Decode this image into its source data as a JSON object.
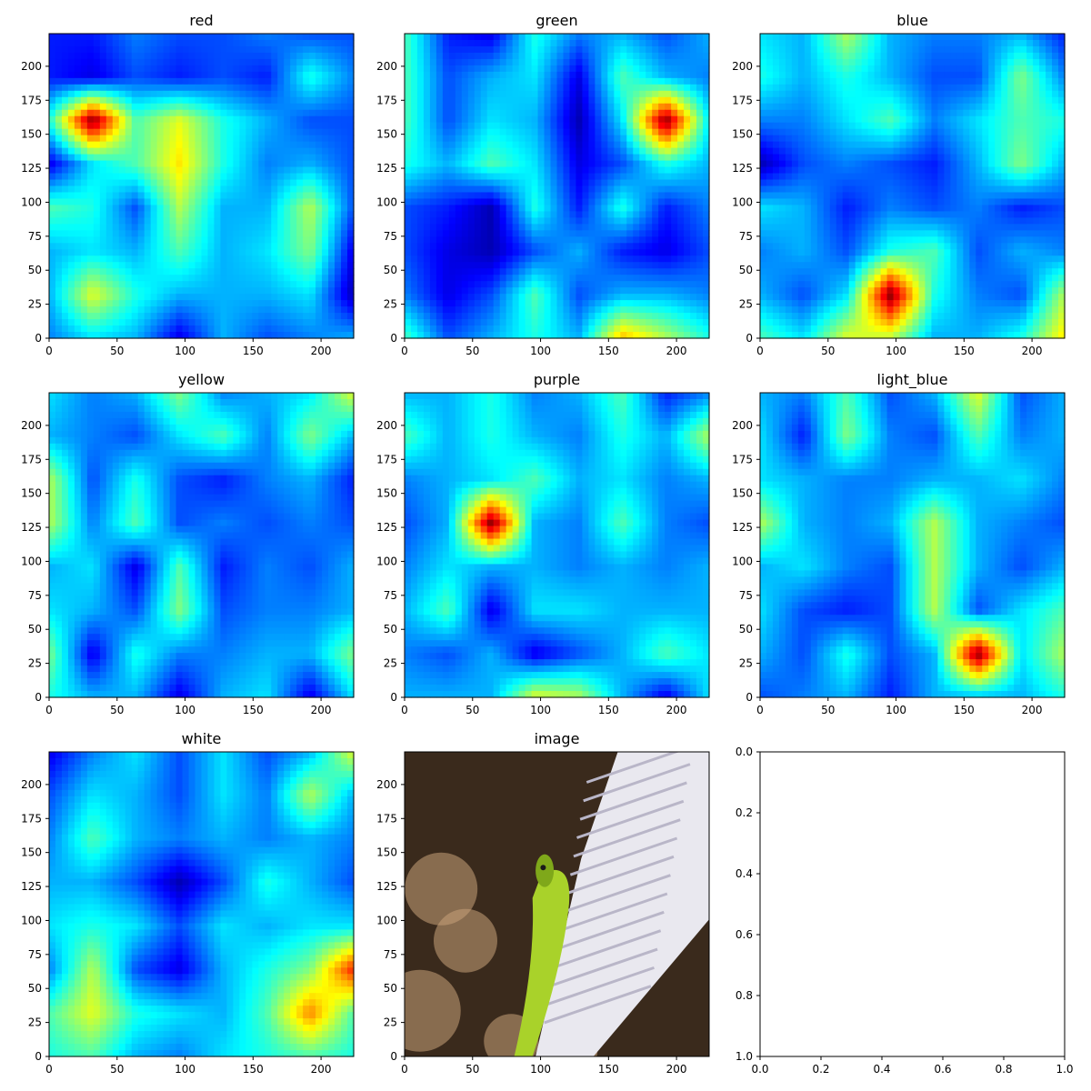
{
  "chart_data": [
    {
      "type": "heatmap",
      "title": "red",
      "colormap": "jet",
      "x_ticks": [
        "0",
        "50",
        "100",
        "150",
        "200"
      ],
      "y_ticks": [
        "0",
        "25",
        "50",
        "75",
        "100",
        "125",
        "150",
        "175",
        "200"
      ],
      "xlim": [
        0,
        224
      ],
      "ylim": [
        224,
        0
      ],
      "grid_size": 8,
      "values": [
        [
          0.15,
          0.15,
          0.25,
          0.2,
          0.2,
          0.25,
          0.2,
          0.2
        ],
        [
          0.15,
          0.1,
          0.2,
          0.15,
          0.2,
          0.15,
          0.4,
          0.25
        ],
        [
          0.4,
          1.0,
          0.45,
          0.6,
          0.4,
          0.3,
          0.2,
          0.2
        ],
        [
          0.1,
          0.35,
          0.45,
          0.65,
          0.4,
          0.25,
          0.3,
          0.2
        ],
        [
          0.45,
          0.4,
          0.2,
          0.55,
          0.3,
          0.3,
          0.55,
          0.2
        ],
        [
          0.3,
          0.35,
          0.3,
          0.45,
          0.3,
          0.35,
          0.5,
          0.1
        ],
        [
          0.3,
          0.6,
          0.4,
          0.3,
          0.3,
          0.3,
          0.35,
          0.05
        ],
        [
          0.25,
          0.35,
          0.3,
          0.1,
          0.3,
          0.2,
          0.25,
          0.3
        ]
      ]
    },
    {
      "type": "heatmap",
      "title": "green",
      "colormap": "jet",
      "x_ticks": [
        "0",
        "50",
        "100",
        "150",
        "200"
      ],
      "y_ticks": [
        "0",
        "25",
        "50",
        "75",
        "100",
        "125",
        "150",
        "175",
        "200"
      ],
      "xlim": [
        0,
        224
      ],
      "ylim": [
        224,
        0
      ],
      "grid_size": 8,
      "values": [
        [
          0.45,
          0.15,
          0.1,
          0.4,
          0.25,
          0.3,
          0.2,
          0.3
        ],
        [
          0.45,
          0.2,
          0.3,
          0.35,
          0.1,
          0.45,
          0.3,
          0.25
        ],
        [
          0.45,
          0.2,
          0.35,
          0.3,
          0.05,
          0.35,
          1.0,
          0.35
        ],
        [
          0.4,
          0.3,
          0.45,
          0.35,
          0.1,
          0.2,
          0.4,
          0.3
        ],
        [
          0.2,
          0.15,
          0.05,
          0.4,
          0.15,
          0.4,
          0.15,
          0.25
        ],
        [
          0.2,
          0.1,
          0.05,
          0.2,
          0.3,
          0.15,
          0.1,
          0.2
        ],
        [
          0.25,
          0.1,
          0.2,
          0.45,
          0.2,
          0.3,
          0.3,
          0.25
        ],
        [
          0.45,
          0.2,
          0.3,
          0.4,
          0.3,
          0.7,
          0.55,
          0.4
        ]
      ]
    },
    {
      "type": "heatmap",
      "title": "blue",
      "colormap": "jet",
      "x_ticks": [
        "0",
        "50",
        "100",
        "150",
        "200"
      ],
      "y_ticks": [
        "0",
        "25",
        "50",
        "75",
        "100",
        "125",
        "150",
        "175",
        "200"
      ],
      "xlim": [
        0,
        224
      ],
      "ylim": [
        224,
        0
      ],
      "grid_size": 8,
      "values": [
        [
          0.35,
          0.3,
          0.55,
          0.3,
          0.25,
          0.25,
          0.3,
          0.15
        ],
        [
          0.4,
          0.3,
          0.4,
          0.3,
          0.2,
          0.2,
          0.5,
          0.25
        ],
        [
          0.25,
          0.25,
          0.35,
          0.45,
          0.25,
          0.35,
          0.45,
          0.4
        ],
        [
          0.05,
          0.2,
          0.25,
          0.2,
          0.15,
          0.3,
          0.5,
          0.3
        ],
        [
          0.35,
          0.3,
          0.15,
          0.25,
          0.2,
          0.25,
          0.15,
          0.2
        ],
        [
          0.25,
          0.3,
          0.2,
          0.4,
          0.45,
          0.2,
          0.3,
          0.25
        ],
        [
          0.3,
          0.2,
          0.35,
          1.0,
          0.4,
          0.25,
          0.2,
          0.55
        ],
        [
          0.45,
          0.35,
          0.6,
          0.55,
          0.3,
          0.3,
          0.4,
          0.65
        ]
      ]
    },
    {
      "type": "heatmap",
      "title": "yellow",
      "colormap": "jet",
      "x_ticks": [
        "0",
        "50",
        "100",
        "150",
        "200"
      ],
      "y_ticks": [
        "0",
        "25",
        "50",
        "75",
        "100",
        "125",
        "150",
        "175",
        "200"
      ],
      "xlim": [
        0,
        224
      ],
      "ylim": [
        224,
        0
      ],
      "grid_size": 8,
      "values": [
        [
          0.35,
          0.25,
          0.3,
          0.5,
          0.25,
          0.3,
          0.35,
          0.6
        ],
        [
          0.3,
          0.25,
          0.2,
          0.35,
          0.45,
          0.25,
          0.5,
          0.3
        ],
        [
          0.55,
          0.2,
          0.4,
          0.2,
          0.15,
          0.25,
          0.3,
          0.15
        ],
        [
          0.55,
          0.25,
          0.45,
          0.2,
          0.25,
          0.2,
          0.25,
          0.2
        ],
        [
          0.3,
          0.35,
          0.1,
          0.45,
          0.15,
          0.25,
          0.2,
          0.3
        ],
        [
          0.35,
          0.3,
          0.2,
          0.5,
          0.2,
          0.25,
          0.25,
          0.3
        ],
        [
          0.5,
          0.1,
          0.4,
          0.25,
          0.25,
          0.3,
          0.3,
          0.5
        ],
        [
          0.4,
          0.3,
          0.3,
          0.1,
          0.3,
          0.35,
          0.1,
          0.35
        ]
      ]
    },
    {
      "type": "heatmap",
      "title": "purple",
      "colormap": "jet",
      "x_ticks": [
        "0",
        "50",
        "100",
        "150",
        "200"
      ],
      "y_ticks": [
        "0",
        "25",
        "50",
        "75",
        "100",
        "125",
        "150",
        "175",
        "200"
      ],
      "xlim": [
        0,
        224
      ],
      "ylim": [
        224,
        0
      ],
      "grid_size": 8,
      "values": [
        [
          0.3,
          0.3,
          0.4,
          0.25,
          0.3,
          0.45,
          0.15,
          0.25
        ],
        [
          0.45,
          0.3,
          0.4,
          0.3,
          0.25,
          0.4,
          0.3,
          0.55
        ],
        [
          0.25,
          0.3,
          0.35,
          0.45,
          0.3,
          0.35,
          0.25,
          0.3
        ],
        [
          0.2,
          0.3,
          1.0,
          0.3,
          0.25,
          0.45,
          0.25,
          0.2
        ],
        [
          0.25,
          0.35,
          0.3,
          0.3,
          0.25,
          0.3,
          0.25,
          0.3
        ],
        [
          0.3,
          0.45,
          0.1,
          0.35,
          0.35,
          0.3,
          0.3,
          0.3
        ],
        [
          0.25,
          0.2,
          0.3,
          0.1,
          0.2,
          0.3,
          0.45,
          0.35
        ],
        [
          0.3,
          0.3,
          0.3,
          0.6,
          0.55,
          0.3,
          0.1,
          0.35
        ]
      ]
    },
    {
      "type": "heatmap",
      "title": "light_blue",
      "colormap": "jet",
      "x_ticks": [
        "0",
        "50",
        "100",
        "150",
        "200"
      ],
      "y_ticks": [
        "0",
        "25",
        "50",
        "75",
        "100",
        "125",
        "150",
        "175",
        "200"
      ],
      "xlim": [
        0,
        224
      ],
      "ylim": [
        224,
        0
      ],
      "grid_size": 8,
      "values": [
        [
          0.3,
          0.25,
          0.45,
          0.2,
          0.3,
          0.6,
          0.2,
          0.3
        ],
        [
          0.35,
          0.15,
          0.5,
          0.25,
          0.2,
          0.45,
          0.25,
          0.3
        ],
        [
          0.35,
          0.3,
          0.25,
          0.25,
          0.3,
          0.3,
          0.35,
          0.25
        ],
        [
          0.55,
          0.3,
          0.25,
          0.3,
          0.55,
          0.3,
          0.25,
          0.2
        ],
        [
          0.3,
          0.35,
          0.25,
          0.2,
          0.55,
          0.3,
          0.2,
          0.3
        ],
        [
          0.35,
          0.2,
          0.15,
          0.2,
          0.55,
          0.2,
          0.35,
          0.45
        ],
        [
          0.3,
          0.2,
          0.4,
          0.2,
          0.3,
          1.0,
          0.35,
          0.55
        ],
        [
          0.2,
          0.25,
          0.3,
          0.15,
          0.3,
          0.3,
          0.3,
          0.4
        ]
      ]
    },
    {
      "type": "heatmap",
      "title": "white",
      "colormap": "jet",
      "x_ticks": [
        "0",
        "50",
        "100",
        "150",
        "200"
      ],
      "y_ticks": [
        "0",
        "25",
        "50",
        "75",
        "100",
        "125",
        "150",
        "175",
        "200"
      ],
      "xlim": [
        0,
        224
      ],
      "ylim": [
        224,
        0
      ],
      "grid_size": 8,
      "values": [
        [
          0.1,
          0.25,
          0.35,
          0.2,
          0.35,
          0.2,
          0.3,
          0.6
        ],
        [
          0.2,
          0.35,
          0.3,
          0.2,
          0.35,
          0.25,
          0.55,
          0.3
        ],
        [
          0.25,
          0.45,
          0.3,
          0.25,
          0.3,
          0.25,
          0.3,
          0.25
        ],
        [
          0.3,
          0.3,
          0.2,
          0.05,
          0.2,
          0.4,
          0.3,
          0.2
        ],
        [
          0.35,
          0.4,
          0.35,
          0.2,
          0.35,
          0.3,
          0.35,
          0.35
        ],
        [
          0.25,
          0.55,
          0.2,
          0.1,
          0.3,
          0.4,
          0.5,
          0.85
        ],
        [
          0.45,
          0.6,
          0.4,
          0.35,
          0.3,
          0.45,
          0.75,
          0.45
        ],
        [
          0.4,
          0.45,
          0.3,
          0.25,
          0.35,
          0.4,
          0.45,
          0.4
        ]
      ]
    },
    {
      "type": "image",
      "title": "image",
      "x_ticks": [
        "0",
        "50",
        "100",
        "150",
        "200"
      ],
      "y_ticks": [
        "0",
        "25",
        "50",
        "75",
        "100",
        "125",
        "150",
        "175",
        "200"
      ],
      "xlim": [
        0,
        224
      ],
      "ylim": [
        224,
        0
      ],
      "colors": {
        "background": "#3a2a1c",
        "bokeh": "#c9a27a",
        "rope": "#e9e8ef",
        "rope_shadow": "#b9b6c8",
        "lizard": "#a9d22a",
        "lizard_dark": "#7fa81a"
      }
    },
    {
      "type": "empty",
      "title": "",
      "x_ticks": [
        "0.0",
        "0.2",
        "0.4",
        "0.6",
        "0.8",
        "1.0"
      ],
      "y_ticks": [
        "0.0",
        "0.2",
        "0.4",
        "0.6",
        "0.8",
        "1.0"
      ],
      "xlim": [
        0,
        1
      ],
      "ylim": [
        0,
        1
      ]
    }
  ]
}
